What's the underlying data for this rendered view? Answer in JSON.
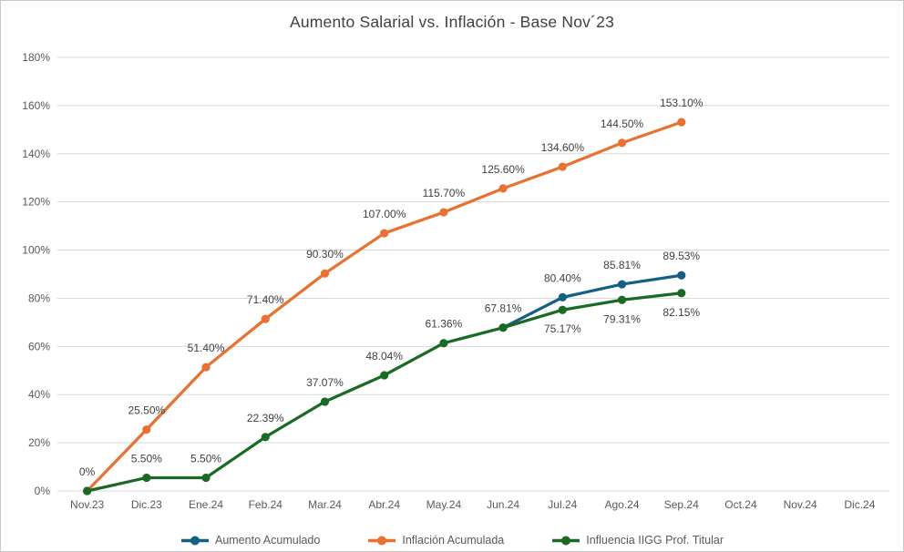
{
  "chart_data": {
    "type": "line",
    "title": "Aumento Salarial vs. Inflación - Base Nov´23",
    "xlabel": "",
    "ylabel": "",
    "ylim": [
      0,
      180
    ],
    "ytick_step": 20,
    "ytick_labels": [
      "0%",
      "20%",
      "40%",
      "60%",
      "80%",
      "100%",
      "120%",
      "140%",
      "160%",
      "180%"
    ],
    "grid": "horizontal",
    "legend_position": "bottom",
    "categories": [
      "Nov.23",
      "Dic.23",
      "Ene.24",
      "Feb.24",
      "Mar.24",
      "Abr.24",
      "May.24",
      "Jun.24",
      "Jul.24",
      "Ago.24",
      "Sep.24",
      "Oct.24",
      "Nov.24",
      "Dic.24"
    ],
    "series": [
      {
        "name": "Aumento Acumulado",
        "color": "#156082",
        "values": [
          null,
          null,
          null,
          null,
          null,
          null,
          null,
          67.81,
          80.4,
          85.81,
          89.53,
          null,
          null,
          null
        ],
        "labels": [
          null,
          null,
          null,
          null,
          null,
          null,
          null,
          null,
          "80.40%",
          "85.81%",
          "89.53%",
          null,
          null,
          null
        ],
        "labels_below": []
      },
      {
        "name": "Inflación Acumulada",
        "color": "#E97132",
        "values": [
          0,
          25.5,
          51.4,
          71.4,
          90.3,
          107.0,
          115.7,
          125.6,
          134.6,
          144.5,
          153.1,
          null,
          null,
          null
        ],
        "labels": [
          null,
          "25.50%",
          "51.40%",
          "71.40%",
          "90.30%",
          "107.00%",
          "115.70%",
          "125.60%",
          "134.60%",
          "144.50%",
          "153.10%",
          null,
          null,
          null
        ],
        "labels_below": []
      },
      {
        "name": "Influencia IIGG Prof. Titular",
        "color": "#196B24",
        "values": [
          0,
          5.5,
          5.5,
          22.39,
          37.07,
          48.04,
          61.36,
          67.81,
          75.17,
          79.31,
          82.15,
          null,
          null,
          null
        ],
        "labels": [
          "0%",
          "5.50%",
          "5.50%",
          "22.39%",
          "37.07%",
          "48.04%",
          "61.36%",
          "67.81%",
          "75.17%",
          "79.31%",
          "82.15%",
          null,
          null,
          null
        ],
        "labels_below": [
          8,
          9,
          10
        ]
      }
    ],
    "colors": {
      "gridline": "#D9D9D9",
      "axis_text": "#595959",
      "data_label_text": "#404040",
      "title_text": "#404040",
      "legend_text": "#595959",
      "background": "#FFFFFF"
    }
  }
}
